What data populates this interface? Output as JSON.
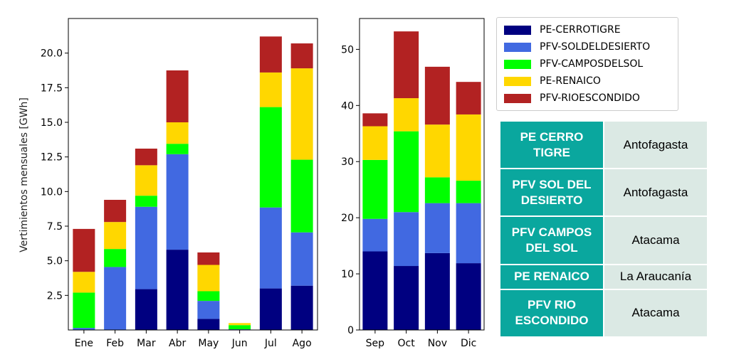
{
  "chart_data": [
    {
      "type": "bar",
      "stacked": true,
      "categories": [
        "Ene",
        "Feb",
        "Mar",
        "Abr",
        "May",
        "Jun",
        "Jul",
        "Ago"
      ],
      "ylabel": "Vertimientos mensuales [GWh]",
      "ylim": [
        0,
        22.5
      ],
      "yticks": [
        "2.5",
        "5.0",
        "7.5",
        "10.0",
        "12.5",
        "15.0",
        "17.5",
        "20.0"
      ],
      "series": [
        {
          "name": "PE-CERROTIGRE",
          "color": "#000080",
          "values": [
            0.0,
            0.0,
            2.95,
            5.8,
            0.8,
            0.0,
            3.0,
            3.2
          ]
        },
        {
          "name": "PFV-SOLDELDESIERTO",
          "color": "#4169e1",
          "values": [
            0.15,
            4.55,
            5.95,
            6.9,
            1.3,
            0.05,
            5.85,
            3.85
          ]
        },
        {
          "name": "PFV-CAMPOSDELSOL",
          "color": "#00ff00",
          "values": [
            2.55,
            1.3,
            0.8,
            0.75,
            0.7,
            0.3,
            7.25,
            5.25
          ]
        },
        {
          "name": "PE-RENAICO",
          "color": "#ffd700",
          "values": [
            1.5,
            1.95,
            2.2,
            1.55,
            1.9,
            0.15,
            2.5,
            6.6
          ]
        },
        {
          "name": "PFV-RIOESCONDIDO",
          "color": "#b22222",
          "values": [
            3.1,
            1.6,
            1.2,
            3.75,
            0.9,
            0.0,
            2.6,
            1.8
          ]
        }
      ]
    },
    {
      "type": "bar",
      "stacked": true,
      "categories": [
        "Sep",
        "Oct",
        "Nov",
        "Dic"
      ],
      "ylabel": "",
      "ylim": [
        0,
        55.5
      ],
      "yticks": [
        "0",
        "10",
        "20",
        "30",
        "40",
        "50"
      ],
      "series": [
        {
          "name": "PE-CERROTIGRE",
          "color": "#000080",
          "values": [
            14.0,
            11.4,
            13.7,
            11.9
          ]
        },
        {
          "name": "PFV-SOLDELDESIERTO",
          "color": "#4169e1",
          "values": [
            5.8,
            9.6,
            8.9,
            10.7
          ]
        },
        {
          "name": "PFV-CAMPOSDELSOL",
          "color": "#00ff00",
          "values": [
            10.5,
            14.4,
            4.6,
            4.0
          ]
        },
        {
          "name": "PE-RENAICO",
          "color": "#ffd700",
          "values": [
            6.0,
            5.9,
            9.4,
            11.8
          ]
        },
        {
          "name": "PFV-RIOESCONDIDO",
          "color": "#b22222",
          "values": [
            2.3,
            11.9,
            10.3,
            5.8
          ]
        }
      ]
    }
  ],
  "legend": [
    {
      "label": "PE-CERROTIGRE",
      "color": "#000080"
    },
    {
      "label": "PFV-SOLDELDESIERTO",
      "color": "#4169e1"
    },
    {
      "label": "PFV-CAMPOSDELSOL",
      "color": "#00ff00"
    },
    {
      "label": "PE-RENAICO",
      "color": "#ffd700"
    },
    {
      "label": "PFV-RIOESCONDIDO",
      "color": "#b22222"
    }
  ],
  "table": {
    "rows": [
      {
        "name": "PE CERRO TIGRE",
        "region": "Antofagasta"
      },
      {
        "name": "PFV SOL DEL DESIERTO",
        "region": "Antofagasta"
      },
      {
        "name": "PFV CAMPOS DEL SOL",
        "region": "Atacama"
      },
      {
        "name": "PE RENAICO",
        "region": "La Araucanía"
      },
      {
        "name": "PFV RIO ESCONDIDO",
        "region": "Atacama"
      }
    ]
  }
}
